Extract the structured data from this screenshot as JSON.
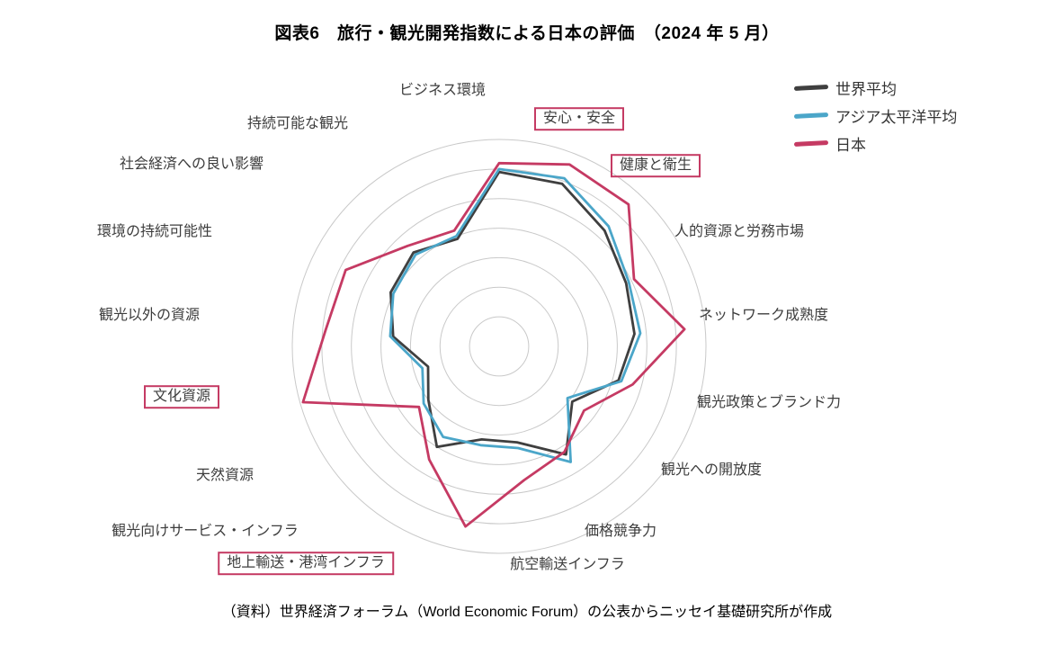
{
  "page": {
    "title": "図表6　旅行・観光開発指数による日本の評価　（2024 年 5 月）",
    "source_note": "（資料）世界経済フォーラム（World Economic Forum）の公表からニッセイ基礎研究所が作成"
  },
  "legend": {
    "position": "top-right",
    "items": [
      {
        "id": "world-average",
        "label": "世界平均",
        "color": "#3f3f3f"
      },
      {
        "id": "asia-pacific-average",
        "label": "アジア太平洋平均",
        "color": "#4ba6c9"
      },
      {
        "id": "japan",
        "label": "日本",
        "color": "#c53a63"
      }
    ]
  },
  "chart_data": {
    "type": "radar",
    "title": "旅行・観光開発指数による日本の評価",
    "grid": "concentric-circles",
    "grid_color": "#c9c9c9",
    "highlight_box_color": "#c53a63",
    "scale": {
      "min": 0,
      "max": 7,
      "rings": 7
    },
    "axes": [
      {
        "label": "ビジネス環境",
        "highlighted": false
      },
      {
        "label": "安心・安全",
        "highlighted": true
      },
      {
        "label": "健康と衛生",
        "highlighted": true
      },
      {
        "label": "人的資源と労務市場",
        "highlighted": false
      },
      {
        "label": "ネットワーク成熟度",
        "highlighted": false
      },
      {
        "label": "観光政策とブランド力",
        "highlighted": false
      },
      {
        "label": "観光への開放度",
        "highlighted": false
      },
      {
        "label": "価格競争力",
        "highlighted": false
      },
      {
        "label": "航空輸送インフラ",
        "highlighted": false
      },
      {
        "label": "地上輸送・港湾インフラ",
        "highlighted": true
      },
      {
        "label": "観光向けサービス・インフラ",
        "highlighted": false
      },
      {
        "label": "天然資源",
        "highlighted": false
      },
      {
        "label": "文化資源",
        "highlighted": true
      },
      {
        "label": "観光以外の資源",
        "highlighted": false
      },
      {
        "label": "環境の持続可能性",
        "highlighted": false
      },
      {
        "label": "社会経済への良い影響",
        "highlighted": false
      },
      {
        "label": "持続可能な観光",
        "highlighted": false
      }
    ],
    "series": [
      {
        "id": "world-average",
        "name": "世界平均",
        "color": "#3f3f3f",
        "values": [
          5.9,
          5.9,
          5.3,
          4.8,
          4.6,
          4.2,
          3.1,
          4.3,
          3.3,
          3.2,
          4.0,
          3.0,
          2.5,
          3.6,
          4.1,
          4.3,
          3.9
        ]
      },
      {
        "id": "asia-pacific-average",
        "name": "アジア太平洋平均",
        "color": "#4ba6c9",
        "values": [
          6.0,
          6.1,
          5.5,
          4.9,
          4.8,
          4.3,
          2.9,
          4.6,
          3.5,
          3.4,
          3.6,
          3.2,
          2.7,
          3.7,
          4.0,
          4.2,
          4.0
        ]
      },
      {
        "id": "japan",
        "name": "日本",
        "color": "#c53a63",
        "values": [
          6.2,
          6.6,
          6.5,
          5.1,
          6.3,
          4.7,
          3.6,
          4.2,
          4.6,
          6.2,
          4.5,
          3.4,
          6.9,
          5.9,
          5.8,
          4.6,
          4.2
        ]
      }
    ]
  }
}
